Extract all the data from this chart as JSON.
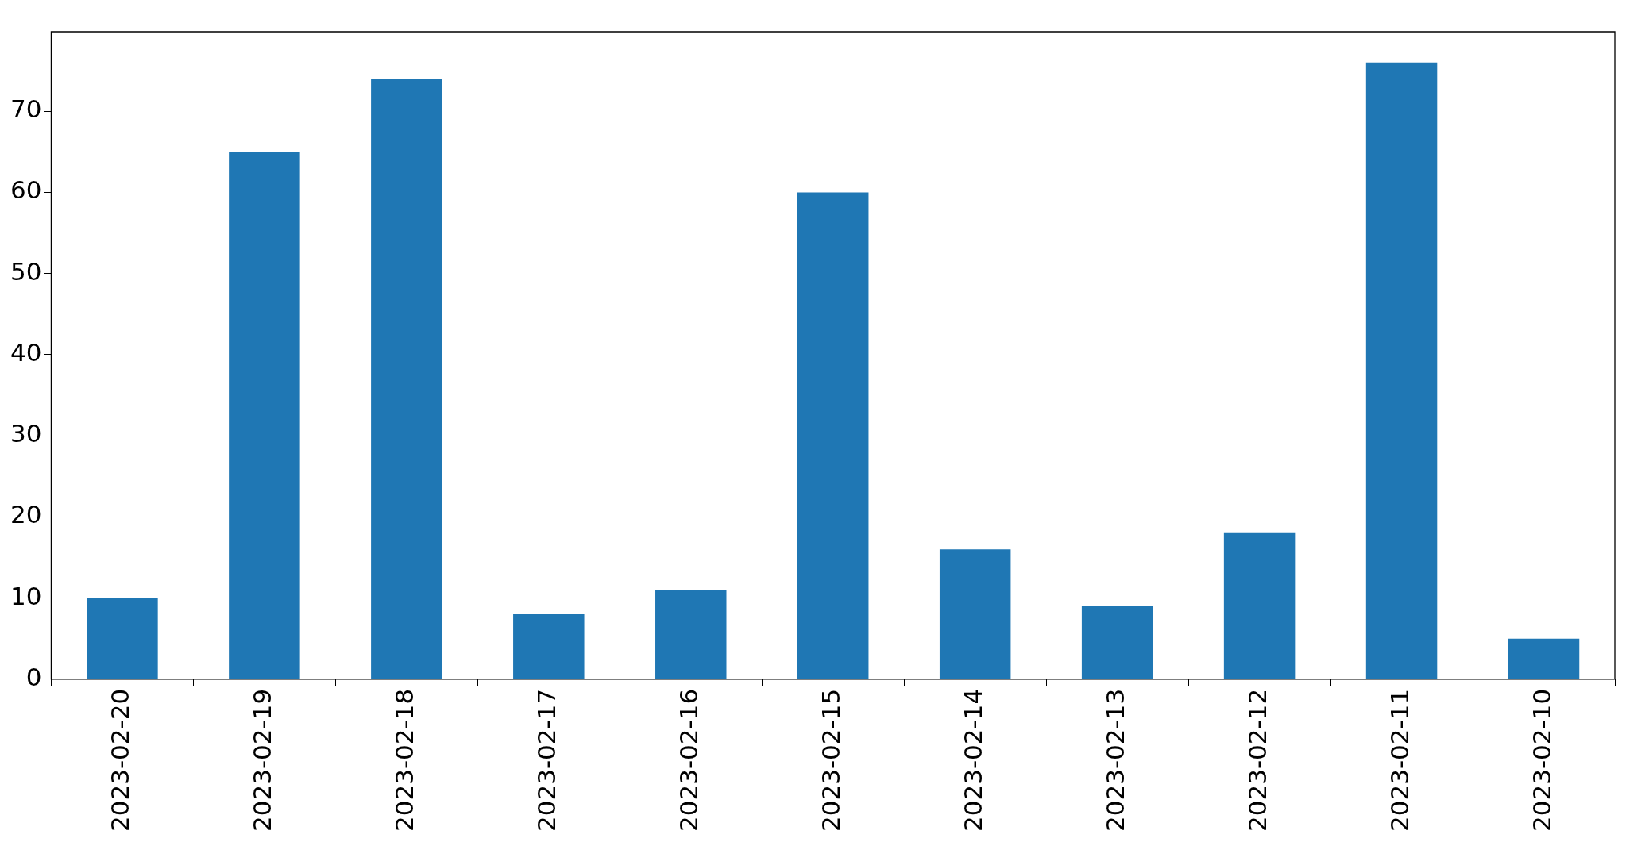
{
  "chart_data": {
    "type": "bar",
    "categories": [
      "2023-02-20",
      "2023-02-19",
      "2023-02-18",
      "2023-02-17",
      "2023-02-16",
      "2023-02-15",
      "2023-02-14",
      "2023-02-13",
      "2023-02-12",
      "2023-02-11",
      "2023-02-10"
    ],
    "values": [
      10,
      65,
      74,
      8,
      11,
      60,
      16,
      9,
      18,
      76,
      5
    ],
    "color": "#1f77b4",
    "ylim": [
      0,
      79.8
    ],
    "yticks": [
      0,
      10,
      20,
      30,
      40,
      50,
      60,
      70
    ],
    "grid": false
  }
}
